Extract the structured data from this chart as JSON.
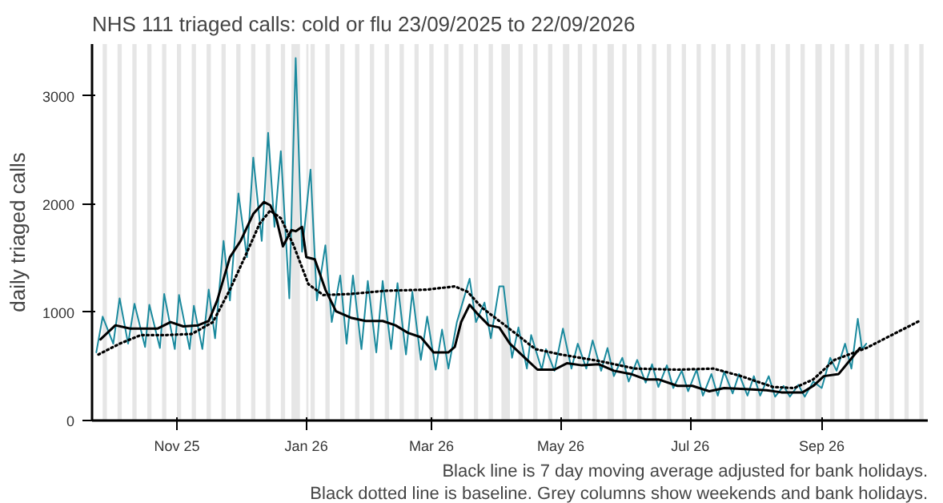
{
  "chart_data": {
    "type": "line",
    "title": "NHS 111 triaged calls: cold or flu 23/09/2025 to 22/09/2026",
    "ylabel": "daily triaged calls",
    "annotations": [
      "Black line is 7 day moving average adjusted for bank holidays.",
      "Black dotted line is baseline. Grey columns show weekends and bank holidays."
    ],
    "xlim": [
      "2025-09-22",
      "2026-10-21"
    ],
    "ylim": [
      0,
      3480
    ],
    "yticks": [
      0,
      1000,
      2000,
      3000
    ],
    "xticks": [
      {
        "value": "2025-11-01",
        "label": "Nov 25"
      },
      {
        "value": "2026-01-01",
        "label": "Jan 26"
      },
      {
        "value": "2026-03-01",
        "label": "Mar 26"
      },
      {
        "value": "2026-05-01",
        "label": "May 26"
      },
      {
        "value": "2026-07-01",
        "label": "Jul 26"
      },
      {
        "value": "2026-09-01",
        "label": "Sep 26"
      }
    ],
    "grid": false,
    "marker": "none",
    "series": [
      {
        "color": "#1b8a9e",
        "line_style": "solid",
        "x": [
          "2025-09-24",
          "2025-09-27",
          "2025-10-02",
          "2025-10-05",
          "2025-10-09",
          "2025-10-12",
          "2025-10-17",
          "2025-10-19",
          "2025-10-24",
          "2025-10-26",
          "2025-10-31",
          "2025-11-02",
          "2025-11-07",
          "2025-11-09",
          "2025-11-13",
          "2025-11-16",
          "2025-11-19",
          "2025-11-23",
          "2025-11-26",
          "2025-11-30",
          "2025-12-04",
          "2025-12-07",
          "2025-12-11",
          "2025-12-14",
          "2025-12-17",
          "2025-12-20",
          "2025-12-24",
          "2025-12-27",
          "2025-12-30",
          "2026-01-03",
          "2026-01-06",
          "2026-01-10",
          "2026-01-13",
          "2026-01-17",
          "2026-01-20",
          "2026-01-23",
          "2026-01-27",
          "2026-01-30",
          "2026-02-03",
          "2026-02-06",
          "2026-02-10",
          "2026-02-13",
          "2026-02-17",
          "2026-02-20",
          "2026-02-24",
          "2026-02-27",
          "2026-03-03",
          "2026-03-06",
          "2026-03-09",
          "2026-03-13",
          "2026-03-19",
          "2026-03-22",
          "2026-03-26",
          "2026-03-29",
          "2026-04-02",
          "2026-04-04",
          "2026-04-08",
          "2026-04-11",
          "2026-04-15",
          "2026-04-17",
          "2026-04-22",
          "2026-04-24",
          "2026-04-28",
          "2026-05-02",
          "2026-05-06",
          "2026-05-09",
          "2026-05-13",
          "2026-05-16",
          "2026-05-20",
          "2026-05-23",
          "2026-05-26",
          "2026-05-30",
          "2026-06-02",
          "2026-06-06",
          "2026-06-10",
          "2026-06-13",
          "2026-06-16",
          "2026-06-20",
          "2026-06-23",
          "2026-06-27",
          "2026-06-30",
          "2026-07-04",
          "2026-07-07",
          "2026-07-11",
          "2026-07-14",
          "2026-07-17",
          "2026-07-21",
          "2026-07-24",
          "2026-07-28",
          "2026-07-31",
          "2026-08-03",
          "2026-08-07",
          "2026-08-10",
          "2026-08-14",
          "2026-08-17",
          "2026-08-21",
          "2026-08-24",
          "2026-08-28",
          "2026-09-01",
          "2026-09-05",
          "2026-09-08",
          "2026-09-12",
          "2026-09-15",
          "2026-09-18",
          "2026-09-20",
          "2026-09-22"
        ],
        "values": [
          630,
          960,
          710,
          1130,
          710,
          1080,
          680,
          1070,
          670,
          1170,
          660,
          1160,
          660,
          1060,
          660,
          1210,
          760,
          1660,
          1110,
          2100,
          1510,
          2430,
          1660,
          2660,
          1790,
          2490,
          1130,
          3350,
          1560,
          2320,
          1110,
          1620,
          910,
          1340,
          710,
          1340,
          660,
          1290,
          630,
          1290,
          660,
          1270,
          610,
          1190,
          560,
          960,
          470,
          840,
          480,
          910,
          1310,
          910,
          1090,
          760,
          1240,
          1240,
          580,
          860,
          480,
          790,
          470,
          660,
          460,
          850,
          480,
          710,
          480,
          740,
          460,
          670,
          410,
          580,
          360,
          560,
          350,
          520,
          310,
          510,
          300,
          460,
          270,
          470,
          230,
          430,
          230,
          450,
          250,
          430,
          230,
          410,
          230,
          410,
          220,
          320,
          220,
          330,
          220,
          360,
          300,
          580,
          460,
          710,
          480,
          940,
          660,
          710
        ]
      },
      {
        "color": "#000000",
        "line_style": "solid",
        "x": [
          "2025-09-26",
          "2025-10-03",
          "2025-10-10",
          "2025-10-17",
          "2025-10-23",
          "2025-10-29",
          "2025-11-04",
          "2025-11-11",
          "2025-11-16",
          "2025-11-20",
          "2025-11-26",
          "2025-12-01",
          "2025-12-07",
          "2025-12-12",
          "2025-12-15",
          "2025-12-18",
          "2025-12-21",
          "2025-12-25",
          "2025-12-27",
          "2025-12-30",
          "2026-01-01",
          "2026-01-05",
          "2026-01-10",
          "2026-01-15",
          "2026-01-22",
          "2026-01-29",
          "2026-02-06",
          "2026-02-12",
          "2026-02-18",
          "2026-02-24",
          "2026-03-02",
          "2026-03-09",
          "2026-03-12",
          "2026-03-15",
          "2026-03-19",
          "2026-03-23",
          "2026-03-28",
          "2026-04-02",
          "2026-04-07",
          "2026-04-14",
          "2026-04-20",
          "2026-04-28",
          "2026-05-04",
          "2026-05-11",
          "2026-05-19",
          "2026-05-26",
          "2026-06-03",
          "2026-06-10",
          "2026-06-16",
          "2026-06-25",
          "2026-07-02",
          "2026-07-10",
          "2026-07-17",
          "2026-07-27",
          "2026-08-06",
          "2026-08-13",
          "2026-08-23",
          "2026-08-28",
          "2026-09-02",
          "2026-09-09",
          "2026-09-14",
          "2026-09-19"
        ],
        "values": [
          750,
          880,
          850,
          850,
          850,
          910,
          870,
          880,
          920,
          1110,
          1510,
          1660,
          1910,
          2020,
          1990,
          1860,
          1610,
          1760,
          1750,
          1790,
          1510,
          1490,
          1210,
          1010,
          950,
          920,
          920,
          880,
          810,
          770,
          630,
          630,
          680,
          910,
          1070,
          980,
          880,
          860,
          710,
          580,
          470,
          470,
          530,
          510,
          520,
          460,
          430,
          380,
          380,
          320,
          320,
          270,
          300,
          290,
          280,
          260,
          260,
          320,
          410,
          430,
          550,
          670
        ]
      },
      {
        "color": "#000000",
        "line_style": "dotted",
        "x": [
          "2025-09-25",
          "2025-10-05",
          "2025-10-15",
          "2025-10-27",
          "2025-11-08",
          "2025-11-18",
          "2025-11-26",
          "2025-12-03",
          "2025-12-10",
          "2025-12-15",
          "2025-12-20",
          "2025-12-26",
          "2026-01-02",
          "2026-01-09",
          "2026-01-22",
          "2026-02-08",
          "2026-02-27",
          "2026-03-12",
          "2026-03-18",
          "2026-03-25",
          "2026-04-06",
          "2026-04-19",
          "2026-05-01",
          "2026-05-19",
          "2026-06-05",
          "2026-06-25",
          "2026-07-12",
          "2026-07-25",
          "2026-08-09",
          "2026-08-19",
          "2026-08-28",
          "2026-09-07",
          "2026-09-22",
          "2026-10-04",
          "2026-10-17"
        ],
        "values": [
          610,
          710,
          790,
          790,
          800,
          910,
          1210,
          1510,
          1820,
          1940,
          1870,
          1620,
          1260,
          1160,
          1170,
          1200,
          1210,
          1240,
          1190,
          1040,
          860,
          660,
          610,
          550,
          480,
          470,
          480,
          410,
          310,
          300,
          380,
          560,
          670,
          790,
          920
        ]
      }
    ],
    "bands": [
      {
        "axis": "x",
        "from": "2025-09-27",
        "to": "2025-09-29"
      },
      {
        "axis": "x",
        "from": "2025-10-04",
        "to": "2025-10-06"
      },
      {
        "axis": "x",
        "from": "2025-10-11",
        "to": "2025-10-13"
      },
      {
        "axis": "x",
        "from": "2025-10-18",
        "to": "2025-10-20"
      },
      {
        "axis": "x",
        "from": "2025-10-25",
        "to": "2025-10-27"
      },
      {
        "axis": "x",
        "from": "2025-11-01",
        "to": "2025-11-03"
      },
      {
        "axis": "x",
        "from": "2025-11-08",
        "to": "2025-11-10"
      },
      {
        "axis": "x",
        "from": "2025-11-15",
        "to": "2025-11-17"
      },
      {
        "axis": "x",
        "from": "2025-11-22",
        "to": "2025-11-24"
      },
      {
        "axis": "x",
        "from": "2025-11-29",
        "to": "2025-12-01"
      },
      {
        "axis": "x",
        "from": "2025-12-06",
        "to": "2025-12-08"
      },
      {
        "axis": "x",
        "from": "2025-12-13",
        "to": "2025-12-15"
      },
      {
        "axis": "x",
        "from": "2025-12-20",
        "to": "2025-12-22"
      },
      {
        "axis": "x",
        "from": "2025-12-25",
        "to": "2025-12-29"
      },
      {
        "axis": "x",
        "from": "2026-01-01",
        "to": "2026-01-02"
      },
      {
        "axis": "x",
        "from": "2026-01-03",
        "to": "2026-01-05"
      },
      {
        "axis": "x",
        "from": "2026-01-10",
        "to": "2026-01-12"
      },
      {
        "axis": "x",
        "from": "2026-01-17",
        "to": "2026-01-19"
      },
      {
        "axis": "x",
        "from": "2026-01-24",
        "to": "2026-01-26"
      },
      {
        "axis": "x",
        "from": "2026-01-31",
        "to": "2026-02-02"
      },
      {
        "axis": "x",
        "from": "2026-02-07",
        "to": "2026-02-09"
      },
      {
        "axis": "x",
        "from": "2026-02-14",
        "to": "2026-02-16"
      },
      {
        "axis": "x",
        "from": "2026-02-21",
        "to": "2026-02-23"
      },
      {
        "axis": "x",
        "from": "2026-02-28",
        "to": "2026-03-02"
      },
      {
        "axis": "x",
        "from": "2026-03-07",
        "to": "2026-03-09"
      },
      {
        "axis": "x",
        "from": "2026-03-14",
        "to": "2026-03-16"
      },
      {
        "axis": "x",
        "from": "2026-03-21",
        "to": "2026-03-23"
      },
      {
        "axis": "x",
        "from": "2026-03-28",
        "to": "2026-03-30"
      },
      {
        "axis": "x",
        "from": "2026-04-03",
        "to": "2026-04-07"
      },
      {
        "axis": "x",
        "from": "2026-04-11",
        "to": "2026-04-13"
      },
      {
        "axis": "x",
        "from": "2026-04-18",
        "to": "2026-04-20"
      },
      {
        "axis": "x",
        "from": "2026-04-25",
        "to": "2026-04-27"
      },
      {
        "axis": "x",
        "from": "2026-05-02",
        "to": "2026-05-05"
      },
      {
        "axis": "x",
        "from": "2026-05-09",
        "to": "2026-05-11"
      },
      {
        "axis": "x",
        "from": "2026-05-16",
        "to": "2026-05-18"
      },
      {
        "axis": "x",
        "from": "2026-05-23",
        "to": "2026-05-26"
      },
      {
        "axis": "x",
        "from": "2026-05-30",
        "to": "2026-06-01"
      },
      {
        "axis": "x",
        "from": "2026-06-06",
        "to": "2026-06-08"
      },
      {
        "axis": "x",
        "from": "2026-06-13",
        "to": "2026-06-15"
      },
      {
        "axis": "x",
        "from": "2026-06-20",
        "to": "2026-06-22"
      },
      {
        "axis": "x",
        "from": "2026-06-27",
        "to": "2026-06-29"
      },
      {
        "axis": "x",
        "from": "2026-07-04",
        "to": "2026-07-06"
      },
      {
        "axis": "x",
        "from": "2026-07-11",
        "to": "2026-07-13"
      },
      {
        "axis": "x",
        "from": "2026-07-18",
        "to": "2026-07-20"
      },
      {
        "axis": "x",
        "from": "2026-07-25",
        "to": "2026-07-27"
      },
      {
        "axis": "x",
        "from": "2026-08-01",
        "to": "2026-08-03"
      },
      {
        "axis": "x",
        "from": "2026-08-08",
        "to": "2026-08-10"
      },
      {
        "axis": "x",
        "from": "2026-08-15",
        "to": "2026-08-17"
      },
      {
        "axis": "x",
        "from": "2026-08-22",
        "to": "2026-08-24"
      },
      {
        "axis": "x",
        "from": "2026-08-29",
        "to": "2026-09-01"
      },
      {
        "axis": "x",
        "from": "2026-09-05",
        "to": "2026-09-07"
      },
      {
        "axis": "x",
        "from": "2026-09-12",
        "to": "2026-09-14"
      },
      {
        "axis": "x",
        "from": "2026-09-19",
        "to": "2026-09-21"
      },
      {
        "axis": "x",
        "from": "2026-09-26",
        "to": "2026-09-28"
      },
      {
        "axis": "x",
        "from": "2026-10-03",
        "to": "2026-10-05"
      },
      {
        "axis": "x",
        "from": "2026-10-10",
        "to": "2026-10-12"
      },
      {
        "axis": "x",
        "from": "2026-10-17",
        "to": "2026-10-19"
      }
    ]
  }
}
